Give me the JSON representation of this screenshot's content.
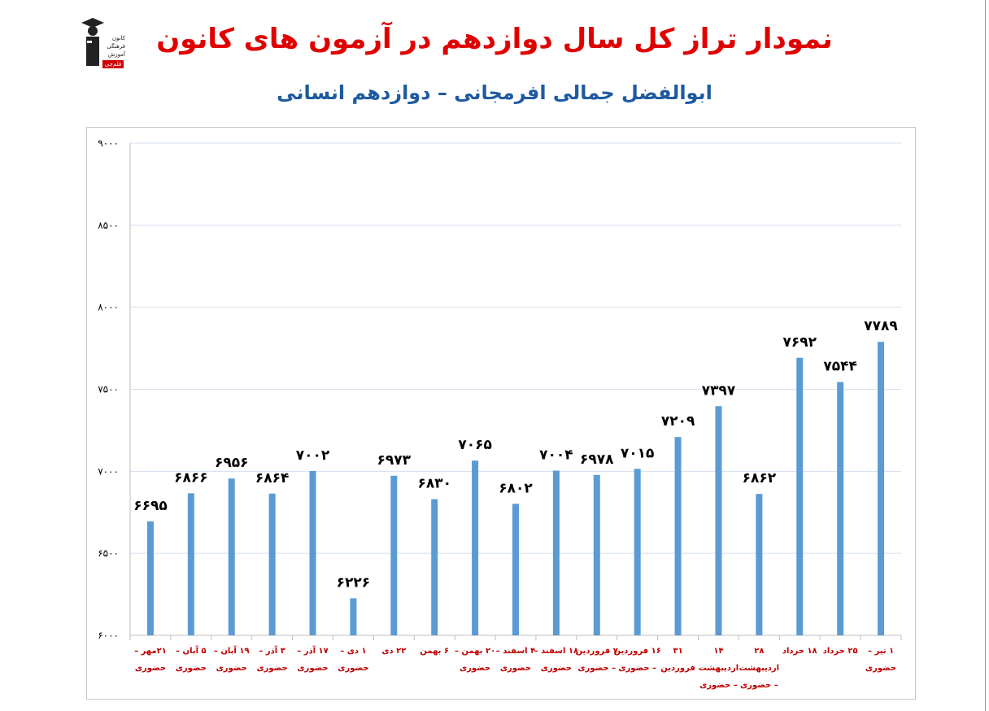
{
  "header": {
    "title": "نمودار تراز کل سال دوازدهم در آزمون های کانون",
    "subtitle": "ابوالفضل جمالی افرمجانی – دوازدهم انسانی"
  },
  "logo": {
    "lines": [
      "کانون",
      "فرهنگی",
      "آموزش"
    ],
    "badge": "قلم‌چی"
  },
  "colors": {
    "bar": "#5b9bd5",
    "title": "#e00000",
    "subtitle": "#1f5aa0",
    "xlabel": "#c00000",
    "grid": "#d3dfee"
  },
  "chart_data": {
    "type": "bar",
    "title": "نمودار تراز کل سال دوازدهم در آزمون های کانون",
    "subtitle": "ابوالفضل جمالی افرمجانی – دوازدهم انسانی",
    "ylim": [
      6000,
      9000
    ],
    "yticks": [
      6000,
      6500,
      7000,
      7500,
      8000,
      8500,
      9000
    ],
    "ytick_labels": [
      "۶۰۰۰",
      "۶۵۰۰",
      "۷۰۰۰",
      "۷۵۰۰",
      "۸۰۰۰",
      "۸۵۰۰",
      "۹۰۰۰"
    ],
    "grid": true,
    "categories": [
      [
        "۲۱مهر –",
        "حضوری"
      ],
      [
        "۵ آبان –",
        "حضوری"
      ],
      [
        "۱۹ آبان –",
        "حضوری"
      ],
      [
        "۳ آذر –",
        "حضوری"
      ],
      [
        "۱۷ آذر –",
        "حضوری"
      ],
      [
        "۱ دی –",
        "حضوری"
      ],
      [
        "۲۲ دی"
      ],
      [
        "۶ بهمن"
      ],
      [
        "۲۰ بهمن –",
        "حضوری"
      ],
      [
        "۴ اسفند –",
        "حضوری"
      ],
      [
        "۱۸ اسفند –",
        "حضوری"
      ],
      [
        "۷ فروردین",
        "– حضوری"
      ],
      [
        "۱۶ فروردین",
        "– حضوری"
      ],
      [
        "۳۱",
        "فروردین"
      ],
      [
        "۱۴",
        "اردیبهشت",
        "– حضوری"
      ],
      [
        "۲۸",
        "اردیبهشت",
        "– حضوری"
      ],
      [
        "۱۸ خرداد"
      ],
      [
        "۲۵ خرداد"
      ],
      [
        "۱ تیر –",
        "حضوری"
      ]
    ],
    "values": [
      6695,
      6866,
      6956,
      6864,
      7002,
      6226,
      6973,
      6830,
      7065,
      6802,
      7004,
      6978,
      7015,
      7209,
      7397,
      6862,
      7692,
      7544,
      7789
    ],
    "value_labels": [
      "۶۶۹۵",
      "۶۸۶۶",
      "۶۹۵۶",
      "۶۸۶۴",
      "۷۰۰۲",
      "۶۲۲۶",
      "۶۹۷۳",
      "۶۸۳۰",
      "۷۰۶۵",
      "۶۸۰۲",
      "۷۰۰۴",
      "۶۹۷۸",
      "۷۰۱۵",
      "۷۲۰۹",
      "۷۳۹۷",
      "۶۸۶۲",
      "۷۶۹۲",
      "۷۵۴۴",
      "۷۷۸۹"
    ]
  }
}
